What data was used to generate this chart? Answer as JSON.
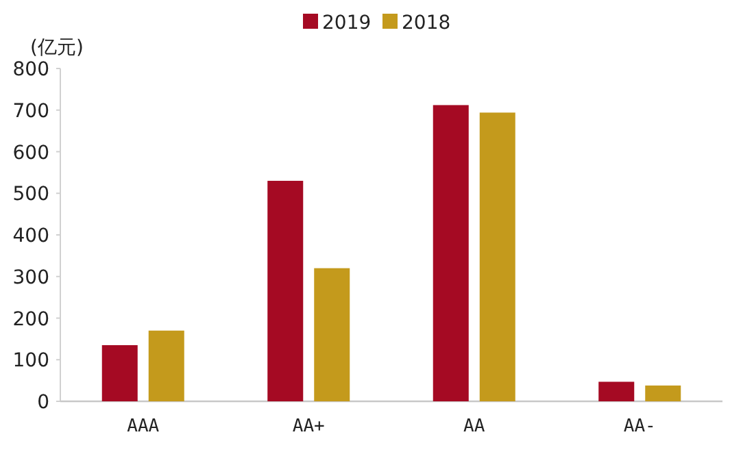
{
  "chart_data": {
    "type": "bar",
    "ylabel": "(亿元)",
    "categories": [
      "AAA",
      "AA+",
      "AA",
      "AA-"
    ],
    "series": [
      {
        "name": "2019",
        "color": "#a50a23",
        "values": [
          135,
          530,
          712,
          47
        ]
      },
      {
        "name": "2018",
        "color": "#c49a1c",
        "values": [
          170,
          320,
          694,
          38
        ]
      }
    ],
    "ylim": [
      0,
      800
    ],
    "yticks": [
      0,
      100,
      200,
      300,
      400,
      500,
      600,
      700,
      800
    ],
    "legend": "top"
  }
}
